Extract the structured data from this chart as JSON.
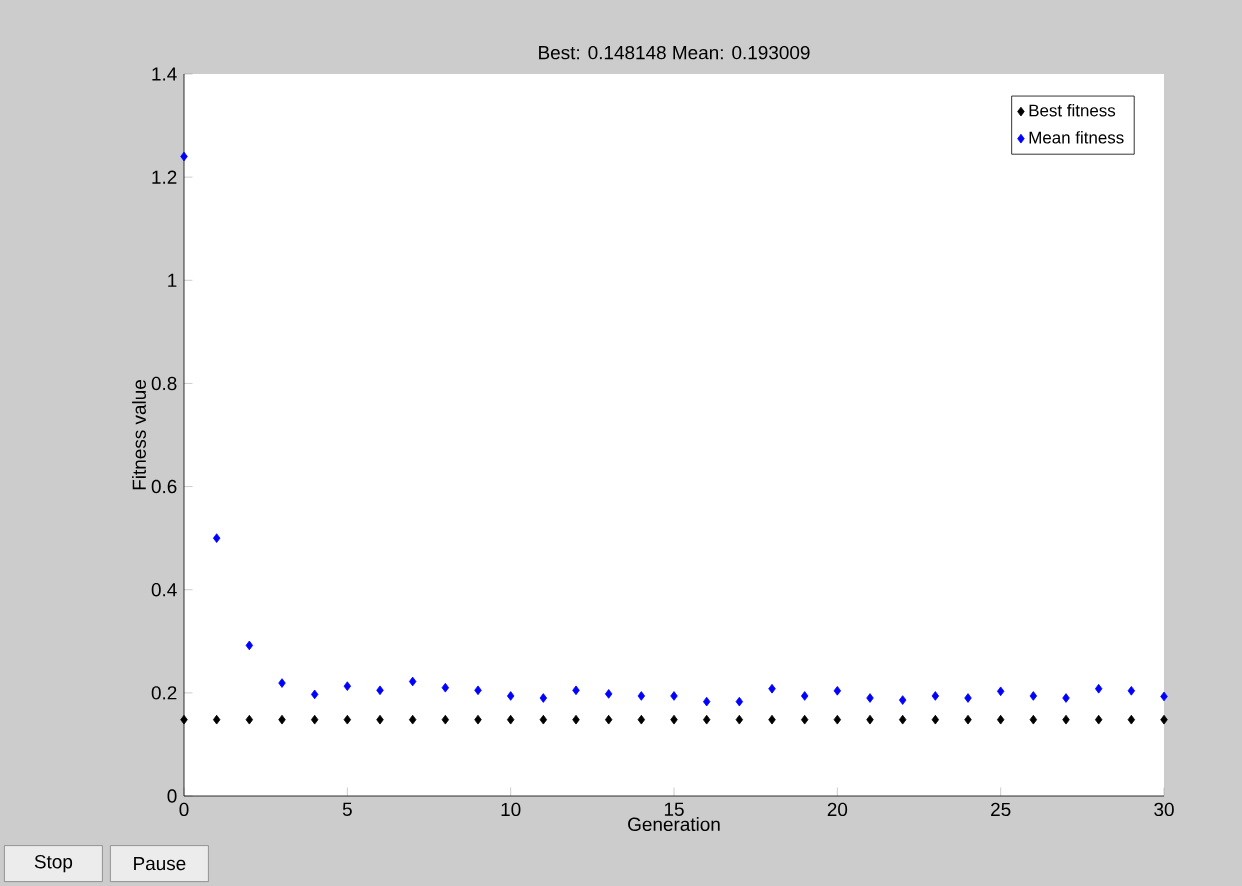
{
  "chart_data": {
    "type": "scatter",
    "title": "Best: 0.148148 Mean: 0.193009",
    "xlabel": "Generation",
    "ylabel": "Fitness value",
    "x": [
      0,
      1,
      2,
      3,
      4,
      5,
      6,
      7,
      8,
      9,
      10,
      11,
      12,
      13,
      14,
      15,
      16,
      17,
      18,
      19,
      20,
      21,
      22,
      23,
      24,
      25,
      26,
      27,
      28,
      29,
      30
    ],
    "series": [
      {
        "name": "Best fitness",
        "color": "#000000",
        "values": [
          0.148,
          0.148,
          0.148,
          0.148,
          0.148,
          0.148,
          0.148,
          0.148,
          0.148,
          0.148,
          0.148,
          0.148,
          0.148,
          0.148,
          0.148,
          0.148,
          0.148,
          0.148,
          0.148,
          0.148,
          0.148,
          0.148,
          0.148,
          0.148,
          0.148,
          0.148,
          0.148,
          0.148,
          0.148,
          0.148,
          0.148
        ]
      },
      {
        "name": "Mean fitness",
        "color": "#0000ff",
        "values": [
          1.24,
          0.5,
          0.292,
          0.219,
          0.197,
          0.213,
          0.205,
          0.222,
          0.21,
          0.205,
          0.194,
          0.19,
          0.205,
          0.198,
          0.194,
          0.194,
          0.183,
          0.183,
          0.208,
          0.194,
          0.204,
          0.19,
          0.186,
          0.194,
          0.19,
          0.203,
          0.194,
          0.19,
          0.208,
          0.204,
          0.193
        ]
      }
    ],
    "xlim": [
      0,
      30
    ],
    "ylim": [
      0,
      1.4
    ],
    "xticks": [
      0,
      5,
      10,
      15,
      20,
      25,
      30
    ],
    "yticks": [
      0,
      0.2,
      0.4,
      0.6,
      0.8,
      1,
      1.2,
      1.4
    ],
    "marker": "diamond",
    "legend": "top right",
    "grid": false,
    "annotations": [
      "Stop",
      "Pause"
    ]
  }
}
